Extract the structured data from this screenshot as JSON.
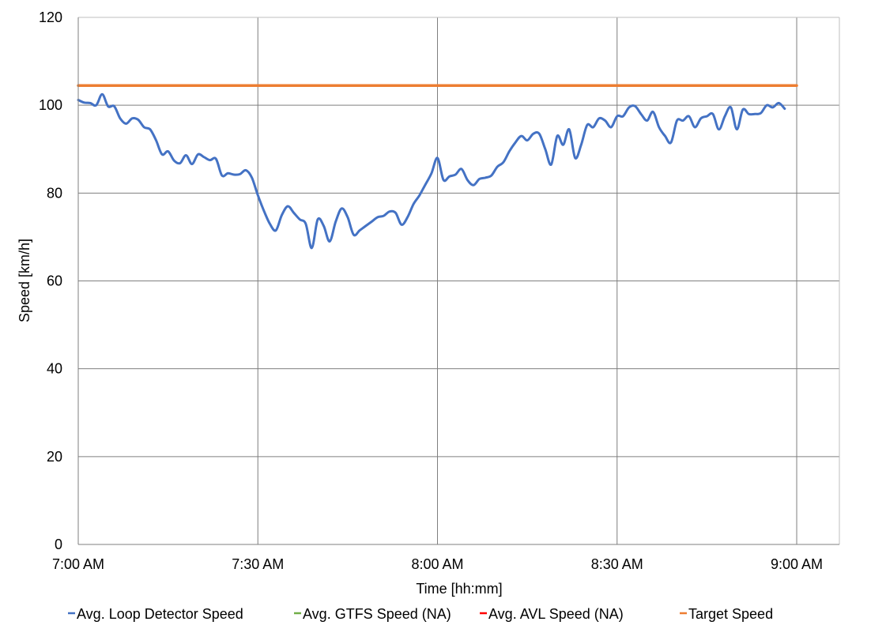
{
  "chart_data": {
    "type": "line",
    "title": "",
    "xlabel": "Time [hh:mm]",
    "ylabel": "Speed [km/h]",
    "xlim_minutes": [
      0,
      120
    ],
    "ylim": [
      0,
      120
    ],
    "x_ticks": [
      {
        "label": "7:00 AM",
        "minute": 0
      },
      {
        "label": "7:30 AM",
        "minute": 30
      },
      {
        "label": "8:00 AM",
        "minute": 60
      },
      {
        "label": "8:30 AM",
        "minute": 90
      },
      {
        "label": "9:00 AM",
        "minute": 120
      }
    ],
    "y_ticks": [
      "0",
      "20",
      "40",
      "60",
      "80",
      "100",
      "120"
    ],
    "grid": "major, both axes",
    "legend_position": "bottom",
    "series": [
      {
        "name": "Avg. Loop Detector Speed",
        "color": "#4472C4",
        "points": [
          [
            0,
            101.2
          ],
          [
            1,
            100.6
          ],
          [
            2,
            100.5
          ],
          [
            3,
            100.0
          ],
          [
            4,
            102.5
          ],
          [
            5,
            99.7
          ],
          [
            6,
            99.8
          ],
          [
            7,
            97.0
          ],
          [
            8,
            95.8
          ],
          [
            9,
            97.0
          ],
          [
            10,
            96.7
          ],
          [
            11,
            95.0
          ],
          [
            12,
            94.5
          ],
          [
            13,
            92.0
          ],
          [
            14,
            88.8
          ],
          [
            15,
            89.5
          ],
          [
            16,
            87.4
          ],
          [
            17,
            86.8
          ],
          [
            18,
            88.6
          ],
          [
            19,
            86.6
          ],
          [
            20,
            88.8
          ],
          [
            21,
            88.2
          ],
          [
            22,
            87.5
          ],
          [
            23,
            87.8
          ],
          [
            24,
            84.0
          ],
          [
            25,
            84.5
          ],
          [
            26,
            84.2
          ],
          [
            27,
            84.3
          ],
          [
            28,
            85.2
          ],
          [
            29,
            83.5
          ],
          [
            30,
            79.5
          ],
          [
            31,
            76.0
          ],
          [
            32,
            73.0
          ],
          [
            33,
            71.5
          ],
          [
            34,
            75.0
          ],
          [
            35,
            77.0
          ],
          [
            36,
            75.5
          ],
          [
            37,
            74.0
          ],
          [
            38,
            73.0
          ],
          [
            39,
            67.5
          ],
          [
            40,
            74.0
          ],
          [
            41,
            72.5
          ],
          [
            42,
            69.0
          ],
          [
            43,
            73.5
          ],
          [
            44,
            76.5
          ],
          [
            45,
            74.5
          ],
          [
            46,
            70.5
          ],
          [
            47,
            71.5
          ],
          [
            48,
            72.5
          ],
          [
            49,
            73.5
          ],
          [
            50,
            74.5
          ],
          [
            51,
            74.8
          ],
          [
            52,
            75.8
          ],
          [
            53,
            75.5
          ],
          [
            54,
            72.8
          ],
          [
            55,
            74.5
          ],
          [
            56,
            77.5
          ],
          [
            57,
            79.5
          ],
          [
            58,
            82.0
          ],
          [
            59,
            84.5
          ],
          [
            60,
            88.0
          ],
          [
            61,
            83.0
          ],
          [
            62,
            83.8
          ],
          [
            63,
            84.2
          ],
          [
            64,
            85.5
          ],
          [
            65,
            83.0
          ],
          [
            66,
            81.8
          ],
          [
            67,
            83.2
          ],
          [
            68,
            83.5
          ],
          [
            69,
            84.0
          ],
          [
            70,
            86.0
          ],
          [
            71,
            87.0
          ],
          [
            72,
            89.5
          ],
          [
            73,
            91.5
          ],
          [
            74,
            93.0
          ],
          [
            75,
            92.0
          ],
          [
            76,
            93.5
          ],
          [
            77,
            93.5
          ],
          [
            78,
            90.0
          ],
          [
            79,
            86.5
          ],
          [
            80,
            93.0
          ],
          [
            81,
            91.0
          ],
          [
            82,
            94.5
          ],
          [
            83,
            88.0
          ],
          [
            84,
            91.0
          ],
          [
            85,
            95.5
          ],
          [
            86,
            95.0
          ],
          [
            87,
            97.0
          ],
          [
            88,
            96.5
          ],
          [
            89,
            95.0
          ],
          [
            90,
            97.5
          ],
          [
            91,
            97.5
          ],
          [
            92,
            99.5
          ],
          [
            93,
            99.8
          ],
          [
            94,
            98.0
          ],
          [
            95,
            96.5
          ],
          [
            96,
            98.5
          ],
          [
            97,
            95.0
          ],
          [
            98,
            93.0
          ],
          [
            99,
            91.5
          ],
          [
            100,
            96.5
          ],
          [
            101,
            96.5
          ],
          [
            102,
            97.5
          ],
          [
            103,
            95.0
          ],
          [
            104,
            97.0
          ],
          [
            105,
            97.5
          ],
          [
            106,
            98.0
          ],
          [
            107,
            94.5
          ],
          [
            108,
            97.5
          ],
          [
            109,
            99.5
          ],
          [
            110,
            94.5
          ],
          [
            111,
            99.0
          ],
          [
            112,
            98.0
          ],
          [
            113,
            98.0
          ],
          [
            114,
            98.2
          ],
          [
            115,
            100.0
          ],
          [
            116,
            99.5
          ],
          [
            117,
            100.5
          ],
          [
            118,
            99.2
          ]
        ]
      },
      {
        "name": "Avg. GTFS Speed (NA)",
        "color": "#70AD47",
        "points": []
      },
      {
        "name": "Avg. AVL Speed (NA)",
        "color": "#FF0000",
        "points": []
      },
      {
        "name": "Target Speed",
        "color": "#ED7D31",
        "points": [
          [
            0,
            104.5
          ],
          [
            120,
            104.5
          ]
        ]
      }
    ]
  }
}
